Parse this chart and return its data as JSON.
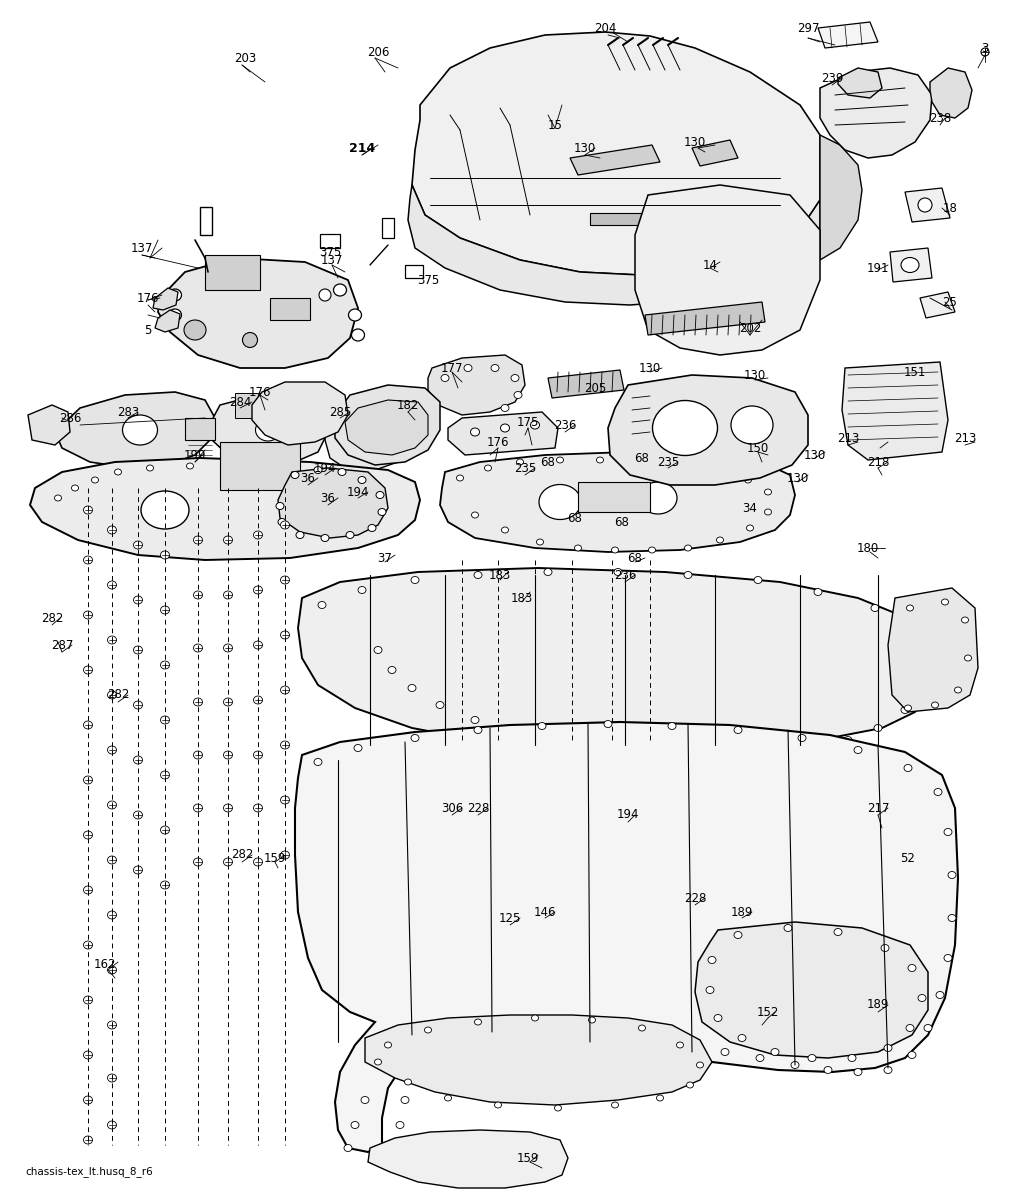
{
  "background_color": "#ffffff",
  "caption": "chassis-tex_lt.husq_8_r6",
  "figsize": [
    10.24,
    11.95
  ],
  "dpi": 100,
  "image_path": null
}
